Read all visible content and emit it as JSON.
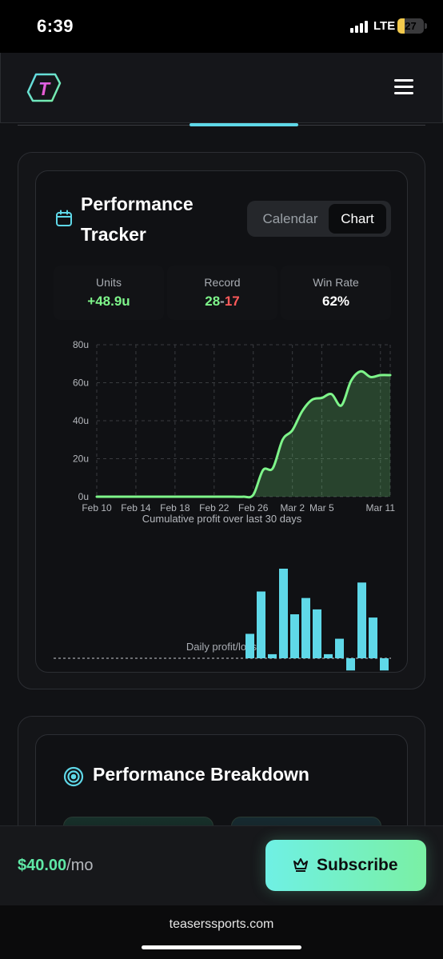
{
  "status_bar": {
    "time": "6:39",
    "network": "LTE",
    "battery": "27",
    "battery_level": 0.27
  },
  "header": {
    "logo_letter": "T",
    "menu_icon": "hamburger-menu-icon"
  },
  "performance": {
    "title": "Performance Tracker",
    "toggle": {
      "calendar": "Calendar",
      "chart": "Chart",
      "active": "Chart"
    },
    "stats": {
      "units": {
        "label": "Units",
        "value": "+48.9u"
      },
      "record": {
        "label": "Record",
        "wins": "28",
        "sep": "-",
        "losses": "17"
      },
      "win_rate": {
        "label": "Win Rate",
        "value": "62%"
      }
    }
  },
  "chart_data": [
    {
      "type": "area",
      "title": "",
      "xlabel": "Cumulative profit over last 30 days",
      "ylabel": "",
      "y_ticks": [
        "0u",
        "20u",
        "40u",
        "60u",
        "80u"
      ],
      "x_ticks": [
        "Feb 10",
        "Feb 14",
        "Feb 18",
        "Feb 22",
        "Feb 26",
        "Mar 2",
        "Mar 5",
        "Mar 11"
      ],
      "ylim": [
        0,
        80
      ],
      "grid": true,
      "x": [
        "Feb 10",
        "Feb 11",
        "Feb 12",
        "Feb 13",
        "Feb 14",
        "Feb 15",
        "Feb 16",
        "Feb 17",
        "Feb 18",
        "Feb 19",
        "Feb 20",
        "Feb 21",
        "Feb 22",
        "Feb 23",
        "Feb 24",
        "Feb 25",
        "Feb 26",
        "Feb 27",
        "Feb 28",
        "Mar 1",
        "Mar 2",
        "Mar 3",
        "Mar 4",
        "Mar 5",
        "Mar 6",
        "Mar 7",
        "Mar 8",
        "Mar 9",
        "Mar 10",
        "Mar 11",
        "Mar 12"
      ],
      "values": [
        0,
        0,
        0,
        0,
        0,
        0,
        0,
        0,
        0,
        0,
        0,
        0,
        0,
        0,
        0,
        0,
        1,
        14,
        15,
        30,
        35,
        45,
        51,
        52,
        54,
        48,
        61,
        66,
        63,
        64,
        64
      ]
    },
    {
      "type": "bar",
      "title": "",
      "xlabel": "Daily profit/loss",
      "categories": [
        "Feb 26",
        "Feb 27",
        "Feb 28",
        "Mar 1",
        "Mar 2",
        "Mar 3",
        "Mar 4",
        "Mar 5",
        "Mar 6",
        "Mar 7",
        "Mar 8",
        "Mar 9",
        "Mar 10"
      ],
      "values": [
        3,
        8.2,
        0.5,
        11,
        5.4,
        7.4,
        6,
        0.5,
        2.4,
        -1.5,
        9.3,
        5,
        -1.5
      ]
    }
  ],
  "breakdown": {
    "title": "Performance Breakdown"
  },
  "subscribe": {
    "price": "$40.00",
    "period": "/mo",
    "button": "Subscribe"
  },
  "browser": {
    "url": "teaserssports.com"
  },
  "colors": {
    "accent_green": "#7ef58a",
    "accent_cyan": "#5fd8e8",
    "loss_red": "#ff5a5a",
    "win_green": "#5fe8a6"
  }
}
